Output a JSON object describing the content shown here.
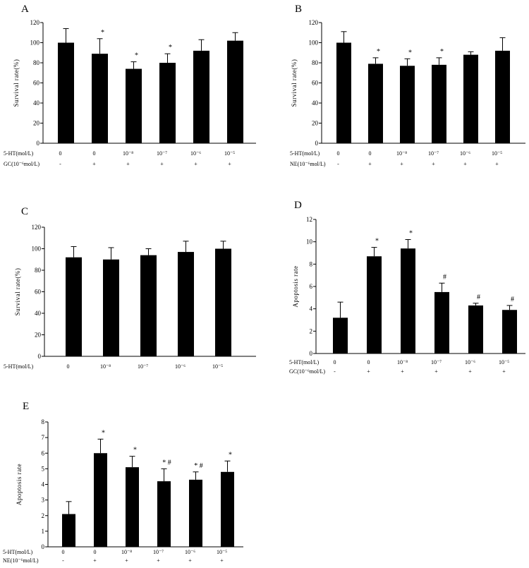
{
  "chart_data": [
    {
      "type": "bar",
      "panel": "A",
      "ylabel": "Survival rate(%)",
      "ylim": [
        0,
        120
      ],
      "yticks": [
        0,
        20,
        40,
        60,
        80,
        100,
        120
      ],
      "values": [
        100,
        89,
        74,
        80,
        92,
        102
      ],
      "errors": [
        14,
        15,
        7,
        9,
        11,
        8
      ],
      "significance": [
        "",
        "*",
        "*",
        "*",
        "",
        ""
      ],
      "conditions": [
        {
          "label": "5-HT(mol/L)",
          "values": [
            "0",
            "0",
            "10⁻⁸",
            "10⁻⁷",
            "10⁻⁶",
            "10⁻⁵"
          ]
        },
        {
          "label": "GC(10⁻⁶mol/L)",
          "values": [
            "-",
            "+",
            "+",
            "+",
            "+",
            "+"
          ]
        }
      ]
    },
    {
      "type": "bar",
      "panel": "B",
      "ylabel": "Survival rate(%)",
      "ylim": [
        0,
        120
      ],
      "yticks": [
        0,
        20,
        40,
        60,
        80,
        100,
        120
      ],
      "values": [
        100,
        79,
        77,
        78,
        88,
        92
      ],
      "errors": [
        11,
        6,
        7,
        7,
        3,
        13
      ],
      "significance": [
        "",
        "*",
        "*",
        "*",
        "",
        ""
      ],
      "conditions": [
        {
          "label": "5-HT(mol/L)",
          "values": [
            "0",
            "0",
            "10⁻⁸",
            "10⁻⁷",
            "10⁻⁶",
            "10⁻⁵"
          ]
        },
        {
          "label": "NE(10⁻⁶mol/L)",
          "values": [
            "-",
            "+",
            "+",
            "+",
            "+",
            "+"
          ]
        }
      ]
    },
    {
      "type": "bar",
      "panel": "C",
      "ylabel": "Survival rate(%)",
      "ylim": [
        0,
        120
      ],
      "yticks": [
        0,
        20,
        40,
        60,
        80,
        100,
        120
      ],
      "values": [
        92,
        90,
        94,
        97,
        100
      ],
      "errors": [
        10,
        11,
        6,
        10,
        7
      ],
      "significance": [
        "",
        "",
        "",
        "",
        ""
      ],
      "conditions": [
        {
          "label": "5-HT(mol/L)",
          "values": [
            "0",
            "10⁻⁸",
            "10⁻⁷",
            "10⁻⁶",
            "10⁻⁵"
          ]
        }
      ]
    },
    {
      "type": "bar",
      "panel": "D",
      "ylabel": "Apoptosis rate",
      "ylim": [
        0,
        12
      ],
      "yticks": [
        0,
        2,
        4,
        6,
        8,
        10,
        12
      ],
      "values": [
        3.2,
        8.7,
        9.4,
        5.5,
        4.3,
        3.9
      ],
      "errors": [
        1.4,
        0.8,
        0.8,
        0.8,
        0.2,
        0.4
      ],
      "significance": [
        "",
        "*",
        "*",
        "#",
        "#",
        "#"
      ],
      "conditions": [
        {
          "label": "5-HT(mol/L)",
          "values": [
            "0",
            "0",
            "10⁻⁸",
            "10⁻⁷",
            "10⁻⁶",
            "10⁻⁵"
          ]
        },
        {
          "label": "GC(10⁻⁶mol/L)",
          "values": [
            "-",
            "+",
            "+",
            "+",
            "+",
            "+"
          ]
        }
      ]
    },
    {
      "type": "bar",
      "panel": "E",
      "ylabel": "Apoptosis rate",
      "ylim": [
        0,
        8
      ],
      "yticks": [
        0,
        1,
        2,
        3,
        4,
        5,
        6,
        7,
        8
      ],
      "values": [
        2.1,
        6.0,
        5.1,
        4.2,
        4.3,
        4.8
      ],
      "errors": [
        0.8,
        0.9,
        0.7,
        0.8,
        0.5,
        0.7
      ],
      "significance": [
        "",
        "*",
        "*",
        "* #",
        "* #",
        "*"
      ],
      "conditions": [
        {
          "label": "5-HT(mol/L)",
          "values": [
            "0",
            "0",
            "10⁻⁸",
            "10⁻⁷",
            "10⁻⁶",
            "10⁻⁵"
          ]
        },
        {
          "label": "NE(10⁻⁶mol/L)",
          "values": [
            "-",
            "+",
            "+",
            "+",
            "+",
            "+"
          ]
        }
      ]
    }
  ]
}
